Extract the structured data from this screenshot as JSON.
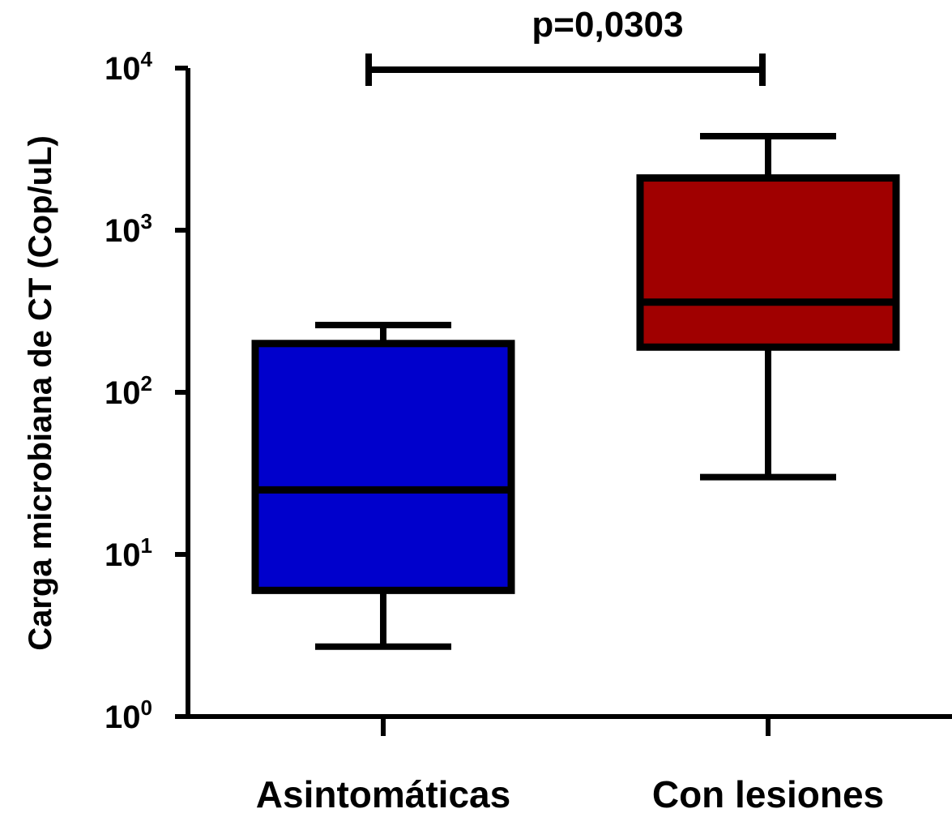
{
  "chart_data": {
    "type": "box",
    "ylabel": "Carga microbiana de CT (Cop/uL)",
    "y_scale": "log10",
    "ylim": [
      1,
      10000
    ],
    "y_ticks": [
      {
        "value": 1,
        "base": "10",
        "exp": "0"
      },
      {
        "value": 10,
        "base": "10",
        "exp": "1"
      },
      {
        "value": 100,
        "base": "10",
        "exp": "2"
      },
      {
        "value": 1000,
        "base": "10",
        "exp": "3"
      },
      {
        "value": 10000,
        "base": "10",
        "exp": "4"
      }
    ],
    "categories": [
      "Asintomáticas",
      "Con lesiones"
    ],
    "boxes": [
      {
        "category": "Asintomáticas",
        "min": 2.7,
        "q1": 6,
        "median": 25,
        "q3": 200,
        "max": 260,
        "color": "#0000cc"
      },
      {
        "category": "Con lesiones",
        "min": 30,
        "q1": 190,
        "median": 360,
        "q3": 2100,
        "max": 3800,
        "color": "#a00000"
      }
    ],
    "annotation": {
      "text": "p=0,0303",
      "between": [
        "Asintomáticas",
        "Con lesiones"
      ]
    }
  }
}
